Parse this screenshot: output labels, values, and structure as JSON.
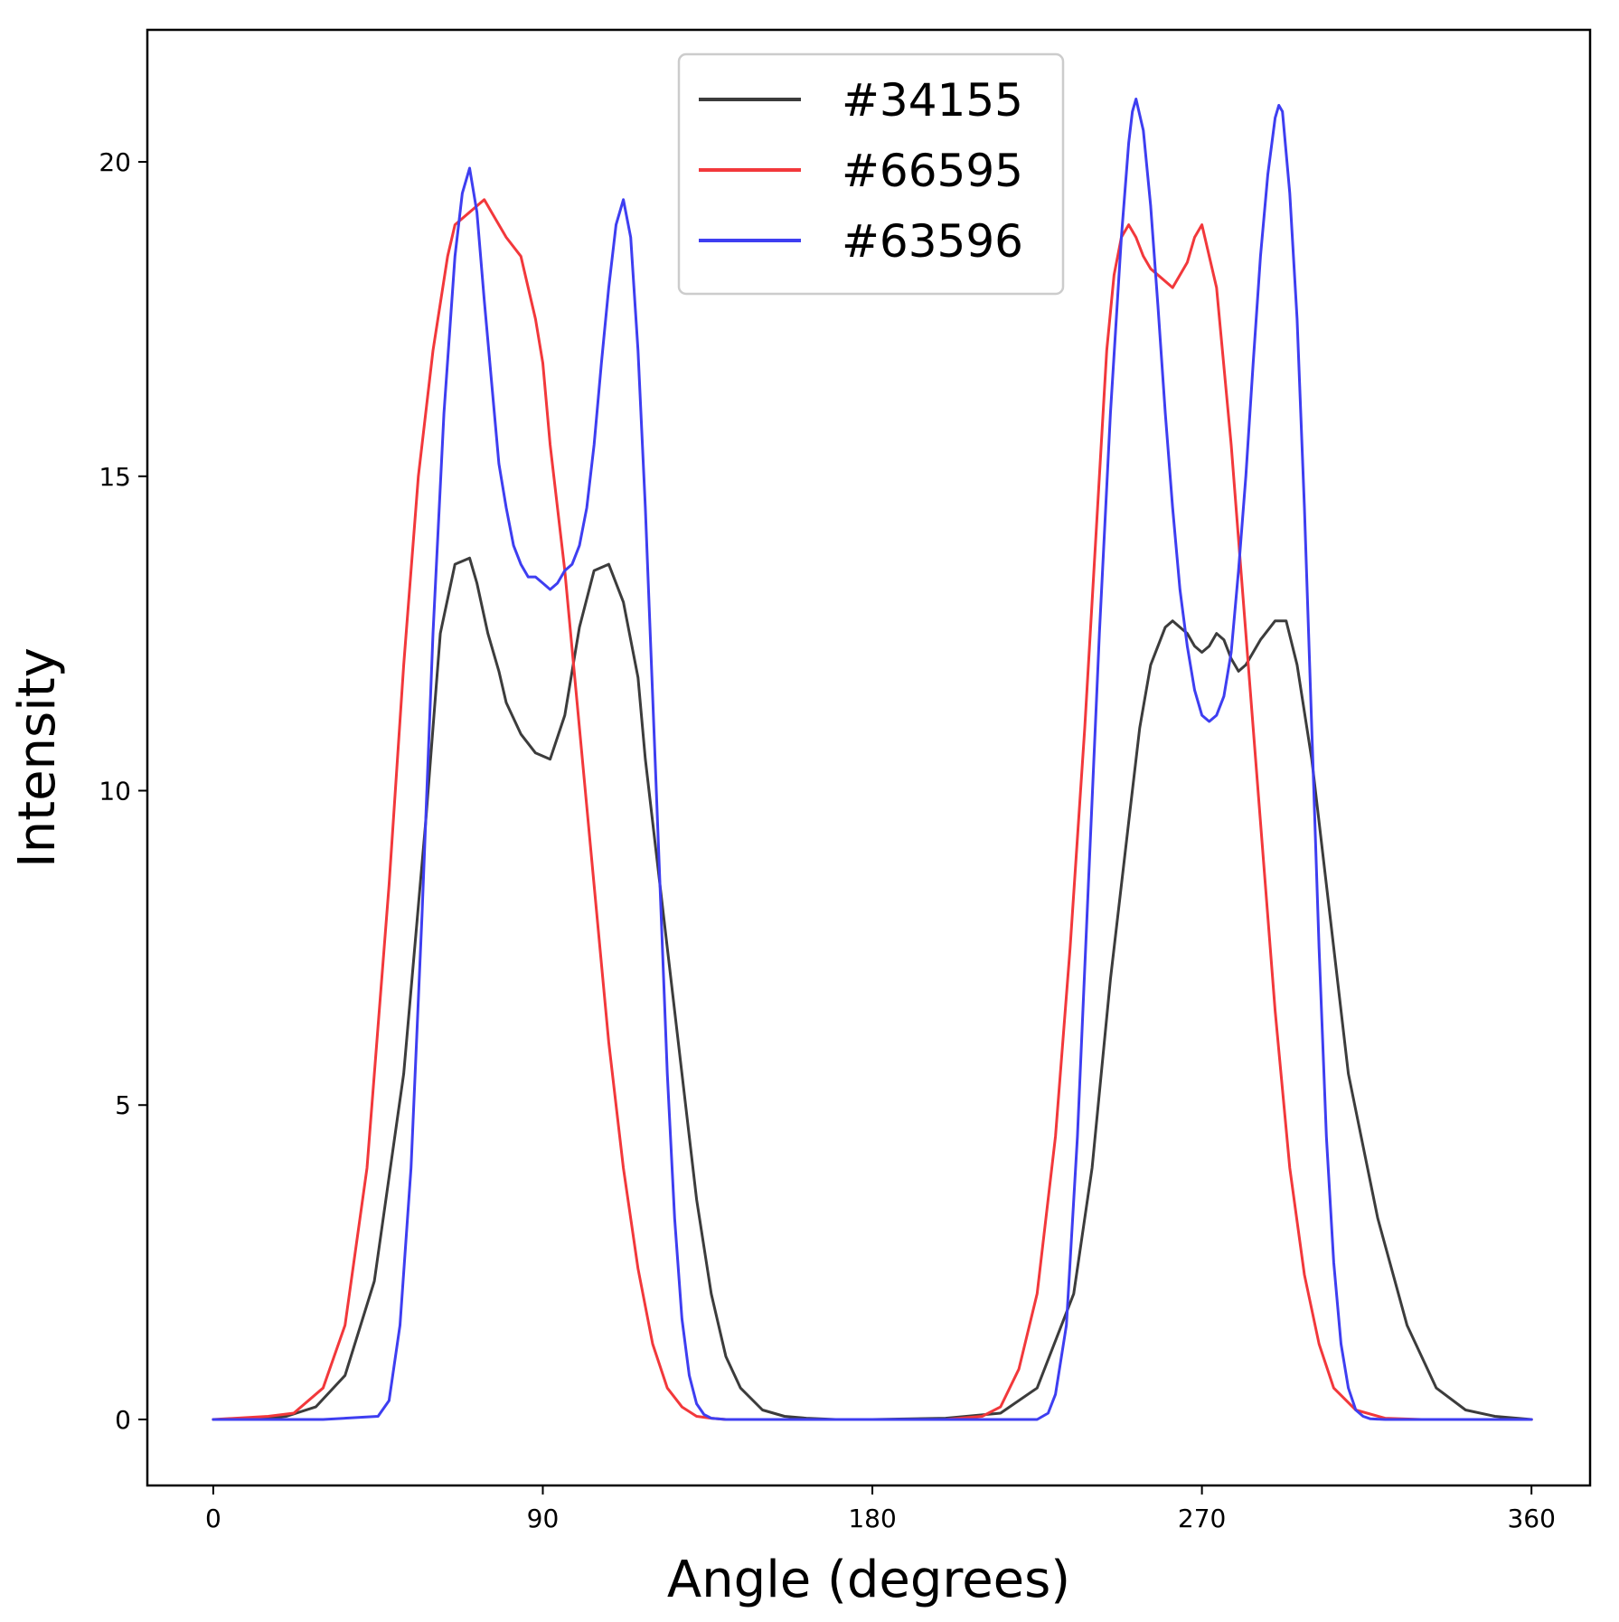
{
  "chart_data": {
    "type": "line",
    "title": "",
    "xlabel": "Angle (degrees)",
    "ylabel": "Intensity",
    "xlim": [
      -18,
      376
    ],
    "ylim": [
      -1.05,
      22.1
    ],
    "xticks": [
      0,
      90,
      180,
      270,
      360
    ],
    "yticks": [
      0,
      5,
      10,
      15,
      20
    ],
    "grid": false,
    "legend_position": "top-center",
    "series": [
      {
        "name": "#34155",
        "color": "#3c3c3c",
        "x": [
          0,
          10,
          20,
          28,
          36,
          44,
          52,
          58,
          62,
          66,
          70,
          72,
          75,
          78,
          80,
          84,
          88,
          92,
          96,
          98,
          100,
          104,
          108,
          112,
          116,
          118,
          120,
          124,
          128,
          132,
          136,
          140,
          144,
          150,
          156,
          162,
          170,
          180,
          200,
          215,
          225,
          235,
          240,
          245,
          250,
          253,
          256,
          260,
          262,
          264,
          266,
          268,
          270,
          272,
          274,
          276,
          278,
          280,
          282,
          284,
          286,
          290,
          293,
          296,
          300,
          305,
          310,
          318,
          326,
          334,
          342,
          350,
          360
        ],
        "y": [
          0,
          0,
          0.05,
          0.2,
          0.7,
          2.2,
          5.5,
          9.5,
          12.5,
          13.6,
          13.7,
          13.3,
          12.5,
          11.9,
          11.4,
          10.9,
          10.6,
          10.5,
          11.2,
          11.9,
          12.6,
          13.5,
          13.6,
          13.0,
          11.8,
          10.5,
          9.5,
          7.5,
          5.5,
          3.5,
          2.0,
          1.0,
          0.5,
          0.15,
          0.05,
          0.02,
          0,
          0,
          0.02,
          0.1,
          0.5,
          2.0,
          4.0,
          7.0,
          9.5,
          11.0,
          12.0,
          12.6,
          12.7,
          12.6,
          12.5,
          12.3,
          12.2,
          12.3,
          12.5,
          12.4,
          12.1,
          11.9,
          12.0,
          12.2,
          12.4,
          12.7,
          12.7,
          12.0,
          10.5,
          8.0,
          5.5,
          3.2,
          1.5,
          0.5,
          0.15,
          0.05,
          0
        ],
        "stroke_width": 3
      },
      {
        "name": "#66595",
        "color": "#f2383b",
        "x": [
          0,
          15,
          22,
          30,
          36,
          42,
          48,
          52,
          56,
          60,
          64,
          66,
          68,
          70,
          72,
          74,
          76,
          80,
          84,
          88,
          90,
          92,
          96,
          100,
          104,
          108,
          112,
          116,
          120,
          124,
          128,
          132,
          136,
          140,
          150,
          170,
          200,
          210,
          215,
          220,
          225,
          230,
          234,
          238,
          242,
          244,
          246,
          248,
          250,
          252,
          254,
          256,
          258,
          262,
          266,
          268,
          270,
          274,
          278,
          282,
          286,
          290,
          294,
          298,
          302,
          306,
          312,
          320,
          330,
          360
        ],
        "y": [
          0,
          0.05,
          0.1,
          0.5,
          1.5,
          4.0,
          8.5,
          12.0,
          15.0,
          17.0,
          18.5,
          19.0,
          19.1,
          19.2,
          19.3,
          19.4,
          19.2,
          18.8,
          18.5,
          17.5,
          16.8,
          15.5,
          13.5,
          11.0,
          8.5,
          6.0,
          4.0,
          2.4,
          1.2,
          0.5,
          0.2,
          0.05,
          0.02,
          0,
          0,
          0,
          0,
          0.05,
          0.2,
          0.8,
          2.0,
          4.5,
          7.5,
          11.0,
          15.0,
          17.0,
          18.2,
          18.8,
          19.0,
          18.8,
          18.5,
          18.3,
          18.2,
          18.0,
          18.4,
          18.8,
          19.0,
          18.0,
          15.5,
          12.5,
          9.5,
          6.5,
          4.0,
          2.3,
          1.2,
          0.5,
          0.15,
          0.02,
          0,
          0
        ],
        "stroke_width": 3
      },
      {
        "name": "#63596",
        "color": "#3e3ef1",
        "x": [
          0,
          30,
          45,
          48,
          51,
          54,
          57,
          60,
          63,
          66,
          68,
          70,
          72,
          74,
          76,
          78,
          80,
          82,
          84,
          86,
          88,
          90,
          92,
          94,
          96,
          98,
          100,
          102,
          104,
          106,
          108,
          110,
          112,
          114,
          116,
          118,
          120,
          122,
          124,
          126,
          128,
          130,
          132,
          134,
          136,
          140,
          150,
          180,
          225,
          228,
          230,
          233,
          236,
          239,
          242,
          245,
          248,
          250,
          251,
          252,
          254,
          256,
          258,
          260,
          262,
          264,
          266,
          268,
          270,
          272,
          274,
          276,
          278,
          280,
          282,
          284,
          286,
          288,
          290,
          291,
          292,
          294,
          296,
          298,
          300,
          302,
          304,
          306,
          308,
          310,
          312,
          314,
          316,
          320,
          330,
          360
        ],
        "y": [
          0,
          0,
          0.05,
          0.3,
          1.5,
          4.0,
          8.0,
          12.5,
          16.0,
          18.5,
          19.5,
          19.9,
          19.2,
          17.8,
          16.5,
          15.2,
          14.5,
          13.9,
          13.6,
          13.4,
          13.4,
          13.3,
          13.2,
          13.3,
          13.5,
          13.6,
          13.9,
          14.5,
          15.5,
          16.8,
          18.0,
          19.0,
          19.4,
          18.8,
          17.0,
          14.5,
          11.5,
          8.5,
          5.5,
          3.2,
          1.6,
          0.7,
          0.25,
          0.08,
          0.02,
          0,
          0,
          0,
          0,
          0.1,
          0.4,
          1.5,
          4.5,
          8.5,
          12.5,
          16.0,
          18.8,
          20.3,
          20.8,
          21.0,
          20.5,
          19.3,
          17.7,
          16.0,
          14.5,
          13.2,
          12.3,
          11.6,
          11.2,
          11.1,
          11.2,
          11.5,
          12.2,
          13.5,
          15.0,
          16.8,
          18.5,
          19.8,
          20.7,
          20.9,
          20.8,
          19.5,
          17.5,
          14.5,
          11.0,
          7.5,
          4.5,
          2.5,
          1.2,
          0.5,
          0.15,
          0.05,
          0.01,
          0,
          0,
          0
        ],
        "stroke_width": 3
      }
    ]
  }
}
